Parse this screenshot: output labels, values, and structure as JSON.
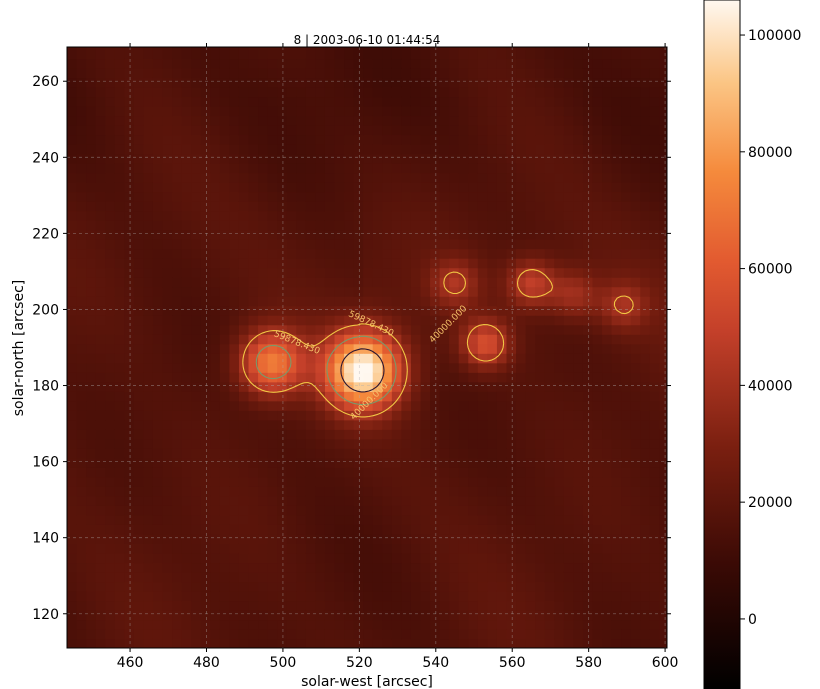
{
  "chart_data": {
    "type": "heatmap",
    "title": "8 | 2003-06-10 01:44:54",
    "xlabel": "solar-west [arcsec]",
    "ylabel": "solar-north [arcsec]",
    "xlim": [
      443.5,
      600.5
    ],
    "ylim": [
      111,
      269
    ],
    "x_ticks": [
      "460",
      "480",
      "500",
      "520",
      "540",
      "560",
      "580",
      "600"
    ],
    "y_ticks": [
      "260",
      "240",
      "220",
      "200",
      "180",
      "160",
      "140",
      "120"
    ],
    "grid": true,
    "colormap": "gist_heat",
    "colorbar": {
      "range": [
        -12000,
        106000
      ],
      "ticks": [
        "100000",
        "80000",
        "60000",
        "40000",
        "20000",
        "0"
      ]
    },
    "background_level": 17000,
    "sources": [
      {
        "x": 497,
        "y": 186,
        "peak": 72000
      },
      {
        "x": 521,
        "y": 184,
        "peak": 106000
      },
      {
        "x": 553,
        "y": 191,
        "peak": 55000
      },
      {
        "x": 545,
        "y": 207,
        "peak": 40000
      },
      {
        "x": 565,
        "y": 207,
        "peak": 48000
      },
      {
        "x": 576,
        "y": 204,
        "peak": 38000
      },
      {
        "x": 589,
        "y": 201,
        "peak": 38000
      }
    ],
    "contours": [
      {
        "level": "40000.000",
        "color": "#f2c744"
      },
      {
        "level": "59878.430",
        "color": "#7a9a6a"
      },
      {
        "level": "85000.000",
        "color": "#2a1430"
      }
    ],
    "contour_labels": [
      "59878.430",
      "59878.430",
      "40000.000",
      "40000.000"
    ]
  }
}
